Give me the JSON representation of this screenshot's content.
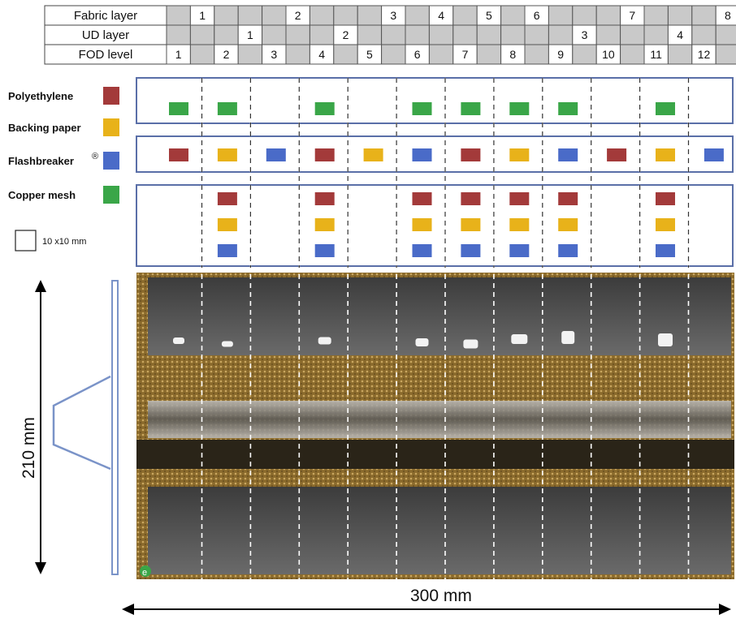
{
  "table": {
    "rows": [
      {
        "label": "Fabric layer",
        "numbers": [
          "1",
          "2",
          "3",
          "4",
          "5",
          "6",
          "7",
          "8"
        ]
      },
      {
        "label": "UD layer",
        "numbers": [
          "1",
          "2",
          "3",
          "4"
        ]
      },
      {
        "label": "FOD level",
        "numbers": [
          "1",
          "2",
          "3",
          "4",
          "5",
          "6",
          "7",
          "8",
          "9",
          "10",
          "11",
          "12"
        ]
      }
    ]
  },
  "legend": {
    "items": [
      {
        "label": "Polyethylene",
        "color": "#a33a3a"
      },
      {
        "label": "Backing paper",
        "color": "#e8b21a"
      },
      {
        "label": "Flashbreaker",
        "mark": "®",
        "color": "#4a6bc8"
      },
      {
        "label": "Copper mesh",
        "color": "#3aa648"
      }
    ],
    "scale_label": "10 x10 mm"
  },
  "dimensions": {
    "height_label": "210 mm",
    "width_label": "300 mm"
  },
  "scan_marker": "e",
  "fod_layout": {
    "top_row": [
      1,
      2,
      4,
      6,
      7,
      8,
      9,
      11
    ],
    "middle_row": [
      {
        "level": 1,
        "material": "Polyethylene"
      },
      {
        "level": 2,
        "material": "Backing paper"
      },
      {
        "level": 3,
        "material": "Flashbreaker"
      },
      {
        "level": 4,
        "material": "Polyethylene"
      },
      {
        "level": 5,
        "material": "Backing paper"
      },
      {
        "level": 6,
        "material": "Flashbreaker"
      },
      {
        "level": 7,
        "material": "Polyethylene"
      },
      {
        "level": 8,
        "material": "Backing paper"
      },
      {
        "level": 9,
        "material": "Flashbreaker"
      },
      {
        "level": 10,
        "material": "Polyethylene"
      },
      {
        "level": 11,
        "material": "Backing paper"
      },
      {
        "level": 12,
        "material": "Flashbreaker"
      }
    ],
    "bottom_stacks": [
      2,
      4,
      6,
      7,
      8,
      9,
      11
    ]
  }
}
